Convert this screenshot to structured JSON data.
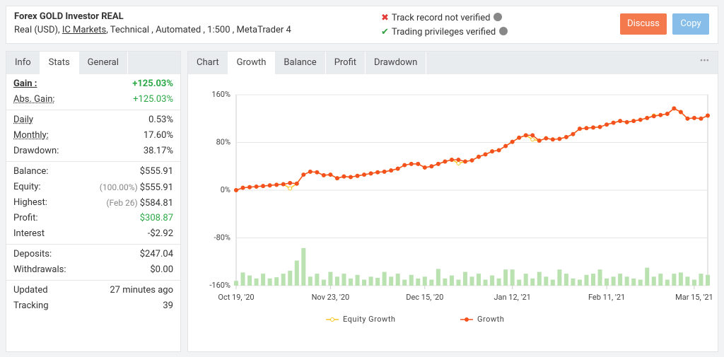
{
  "header": {
    "title": "Forex GOLD Investor REAL",
    "subtitle_prefix": "Real (USD),",
    "broker": "IC Markets",
    "subtitle_rest": ", Technical , Automated , 1:500 , MetaTrader 4",
    "status": [
      {
        "icon": "✖",
        "icon_color": "#e53935",
        "text": "Track record not verified"
      },
      {
        "icon": "✔",
        "icon_color": "#2e9e3e",
        "text": "Trading privileges verified"
      }
    ],
    "buttons": [
      {
        "label": "Discuss",
        "color": "#f47a4d"
      },
      {
        "label": "Copy",
        "color": "#86bde9"
      }
    ]
  },
  "left_tabs": {
    "items": [
      "Info",
      "Stats",
      "General"
    ],
    "active": 1
  },
  "stats": [
    [
      {
        "label": "Gain :",
        "value": "+125.03%",
        "color": "#2aa845",
        "bold": true
      },
      {
        "label": "Abs. Gain:",
        "value": "+125.03%",
        "color": "#2aa845"
      }
    ],
    [
      {
        "label": "Daily",
        "value": "0.53%"
      },
      {
        "label": "Monthly:",
        "value": "17.60%"
      },
      {
        "label": "Drawdown:",
        "value": "38.17%"
      }
    ],
    [
      {
        "label": "Balance:",
        "value": "$555.91"
      },
      {
        "label": "Equity:",
        "note": "(100.00%)",
        "value": "$555.91"
      },
      {
        "label": "Highest:",
        "note": "(Feb 26)",
        "value": "$584.81"
      },
      {
        "label": "Profit:",
        "value": "$308.87",
        "color": "#2aa845"
      },
      {
        "label": "Interest",
        "value": "-$2.92"
      }
    ],
    [
      {
        "label": "Deposits:",
        "value": "$247.04"
      },
      {
        "label": "Withdrawals:",
        "value": "$0.00"
      }
    ],
    [
      {
        "label": "Updated",
        "value": "27 minutes ago"
      },
      {
        "label": "Tracking",
        "value": "39"
      }
    ]
  ],
  "right_tabs": {
    "label": "Chart",
    "items": [
      "Growth",
      "Balance",
      "Profit",
      "Drawdown"
    ],
    "active": 0,
    "menu": "•••"
  },
  "chart_data": {
    "type": "line",
    "categories": [
      "Oct 19, '20",
      null,
      null,
      null,
      null,
      null,
      null,
      null,
      null,
      null,
      null,
      null,
      null,
      null,
      "Nov 23, '20",
      null,
      null,
      null,
      null,
      null,
      null,
      null,
      null,
      null,
      null,
      null,
      null,
      null,
      "Dec 15, '20",
      null,
      null,
      null,
      null,
      null,
      null,
      null,
      null,
      null,
      null,
      null,
      null,
      "Jan 12, '21",
      null,
      null,
      null,
      null,
      null,
      null,
      null,
      null,
      null,
      null,
      null,
      null,
      null,
      "Feb 11, '21",
      null,
      null,
      null,
      null,
      null,
      null,
      null,
      null,
      null,
      null,
      null,
      null,
      "Mar 15, '21",
      null,
      null
    ],
    "series": [
      {
        "name": "Equity Growth",
        "color": "#f5c623",
        "values": [
          0,
          4,
          5,
          6,
          7,
          8,
          9,
          10,
          3,
          11,
          26,
          31,
          30,
          25,
          26,
          20,
          23,
          22,
          24,
          26,
          28,
          30,
          31,
          33,
          36,
          42,
          44,
          44,
          38,
          40,
          44,
          48,
          51,
          45,
          48,
          50,
          56,
          60,
          65,
          67,
          74,
          81,
          88,
          92,
          85,
          83,
          87,
          85,
          86,
          89,
          94,
          103,
          104,
          105,
          106,
          110,
          113,
          116,
          114,
          116,
          118,
          121,
          125,
          126,
          128,
          137,
          131,
          120,
          121,
          120,
          125
        ]
      },
      {
        "name": "Growth",
        "color": "#f4511e",
        "values": [
          0,
          4,
          5,
          6,
          7,
          8,
          9,
          10,
          12,
          11,
          26,
          31,
          30,
          25,
          26,
          20,
          23,
          22,
          24,
          26,
          28,
          30,
          31,
          33,
          36,
          42,
          44,
          44,
          38,
          40,
          44,
          48,
          51,
          51,
          48,
          50,
          56,
          60,
          65,
          67,
          74,
          81,
          88,
          92,
          92,
          83,
          87,
          85,
          86,
          89,
          94,
          103,
          104,
          105,
          106,
          110,
          113,
          116,
          114,
          116,
          118,
          121,
          124,
          126,
          128,
          137,
          131,
          120,
          121,
          120,
          125
        ]
      }
    ],
    "bars": {
      "color": "#b9e2b0",
      "values": [
        -152,
        -138,
        -143,
        -148,
        -140,
        -148,
        -146,
        -140,
        -135,
        -118,
        -97,
        -145,
        -140,
        -150,
        -137,
        -145,
        -140,
        -148,
        -142,
        -150,
        -145,
        -147,
        -137,
        -145,
        -140,
        -150,
        -142,
        -148,
        -145,
        -150,
        -132,
        -148,
        -143,
        -150,
        -137,
        -145,
        -140,
        -150,
        -143,
        -148,
        -133,
        -133,
        -150,
        -140,
        -148,
        -137,
        -145,
        -150,
        -133,
        -140,
        -148,
        -150,
        -142,
        -140,
        -133,
        -148,
        -145,
        -140,
        -145,
        -148,
        -150,
        -130,
        -145,
        -140,
        -150,
        -140,
        -138,
        -145,
        -150,
        -140,
        -142
      ]
    },
    "ylim": [
      -160,
      160
    ],
    "yticks": [
      {
        "value": -160,
        "label": "-160%"
      },
      {
        "value": -80,
        "label": "-80%"
      },
      {
        "value": 0,
        "label": "0%"
      },
      {
        "value": 80,
        "label": "80%"
      },
      {
        "value": 160,
        "label": "160%"
      }
    ],
    "grid": true
  }
}
